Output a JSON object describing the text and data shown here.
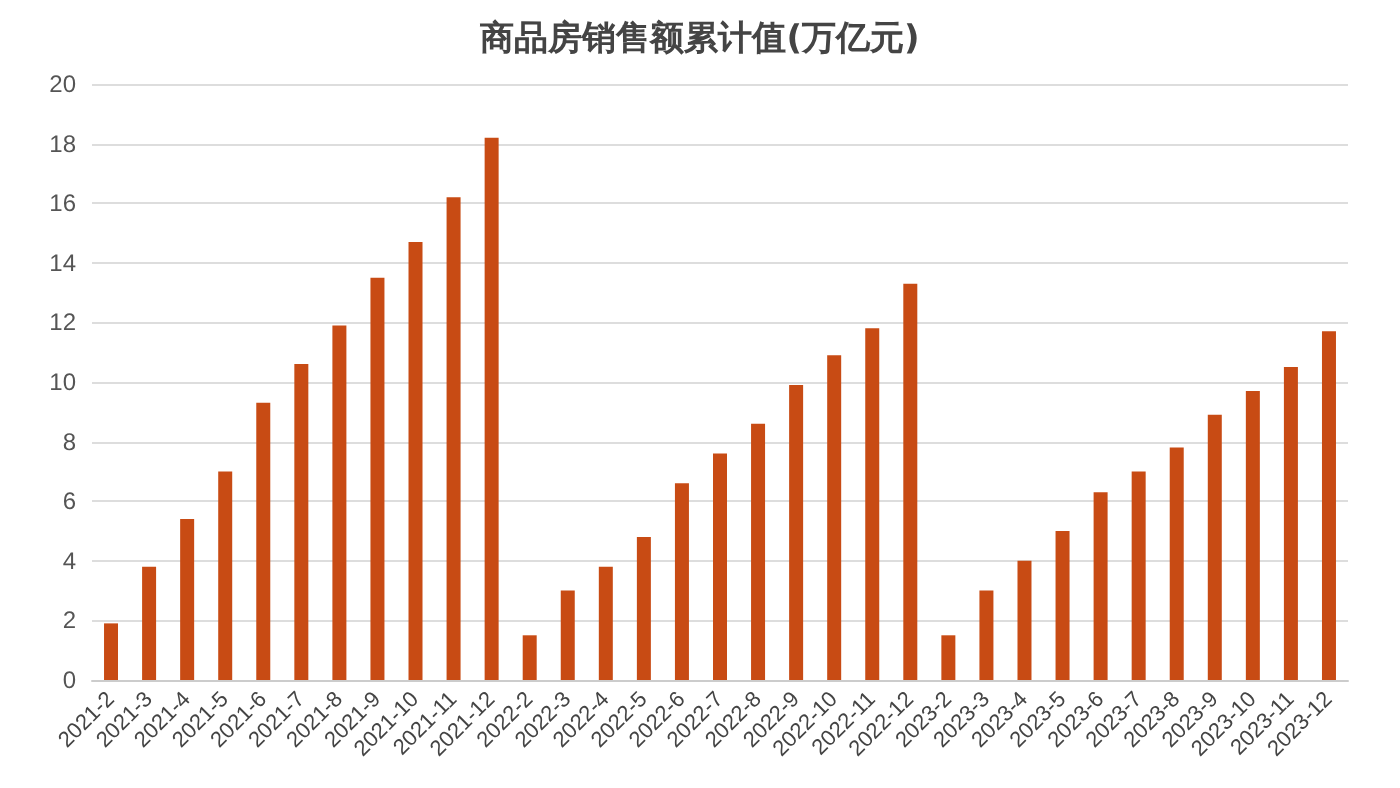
{
  "chart_data": {
    "type": "bar",
    "title": "商品房销售额累计值(万亿元)",
    "categories": [
      "2021-2",
      "2021-3",
      "2021-4",
      "2021-5",
      "2021-6",
      "2021-7",
      "2021-8",
      "2021-9",
      "2021-10",
      "2021-11",
      "2021-12",
      "2022-2",
      "2022-3",
      "2022-4",
      "2022-5",
      "2022-6",
      "2022-7",
      "2022-8",
      "2022-9",
      "2022-10",
      "2022-11",
      "2022-12",
      "2023-2",
      "2023-3",
      "2023-4",
      "2023-5",
      "2023-6",
      "2023-7",
      "2023-8",
      "2023-9",
      "2023-10",
      "2023-11",
      "2023-12"
    ],
    "values": [
      1.9,
      3.8,
      5.4,
      7.0,
      9.3,
      10.6,
      11.9,
      13.5,
      14.7,
      16.2,
      18.2,
      1.5,
      3.0,
      3.8,
      4.8,
      6.6,
      7.6,
      8.6,
      9.9,
      10.9,
      11.8,
      13.3,
      1.5,
      3.0,
      4.0,
      5.0,
      6.3,
      7.0,
      7.8,
      8.9,
      9.7,
      10.5,
      11.7
    ],
    "color": "#c84b14",
    "ylim": [
      0,
      20
    ],
    "yticks": [
      0,
      2,
      4,
      6,
      8,
      10,
      12,
      14,
      16,
      18,
      20
    ],
    "grid": "y"
  }
}
